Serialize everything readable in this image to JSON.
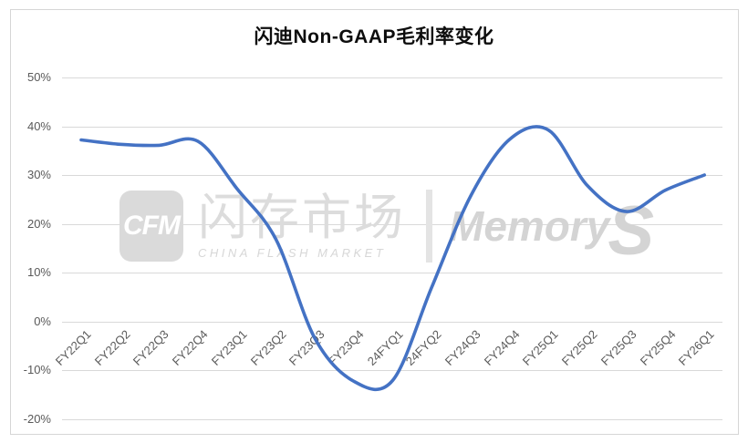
{
  "title": "闪迪Non-GAAP毛利率变化",
  "watermark": {
    "logo_text": "CFM",
    "brand_cn": "闪存市场",
    "brand_en": "CHINA FLASH MARKET",
    "memory_text": "Memory",
    "s_text": "S"
  },
  "chart_data": {
    "type": "line",
    "title": "闪迪Non-GAAP毛利率变化",
    "categories": [
      "FY22Q1",
      "FY22Q2",
      "FY22Q3",
      "FY22Q4",
      "FY23Q1",
      "FY23Q2",
      "FY23Q3",
      "FY23Q4",
      "24FYQ1",
      "24FYQ2",
      "FY24Q3",
      "FY24Q4",
      "FY25Q1",
      "FY25Q2",
      "FY25Q3",
      "FY25Q4",
      "FY26Q1"
    ],
    "values": [
      37.2,
      36.3,
      36.1,
      36.9,
      27.2,
      16.8,
      -3.5,
      -12.3,
      -12.1,
      7.0,
      25.7,
      37.3,
      39.2,
      27.8,
      22.5,
      26.9,
      30.0
    ],
    "xlabel": "",
    "ylabel": "",
    "yticks": [
      "50%",
      "40%",
      "30%",
      "20%",
      "10%",
      "0%",
      "-10%",
      "-20%"
    ],
    "ylim": [
      -20,
      50
    ],
    "grid": true,
    "legend": false,
    "smooth": true,
    "line_color": "#4472C4",
    "grid_color": "#d9d9d9",
    "tick_color": "#595959"
  }
}
